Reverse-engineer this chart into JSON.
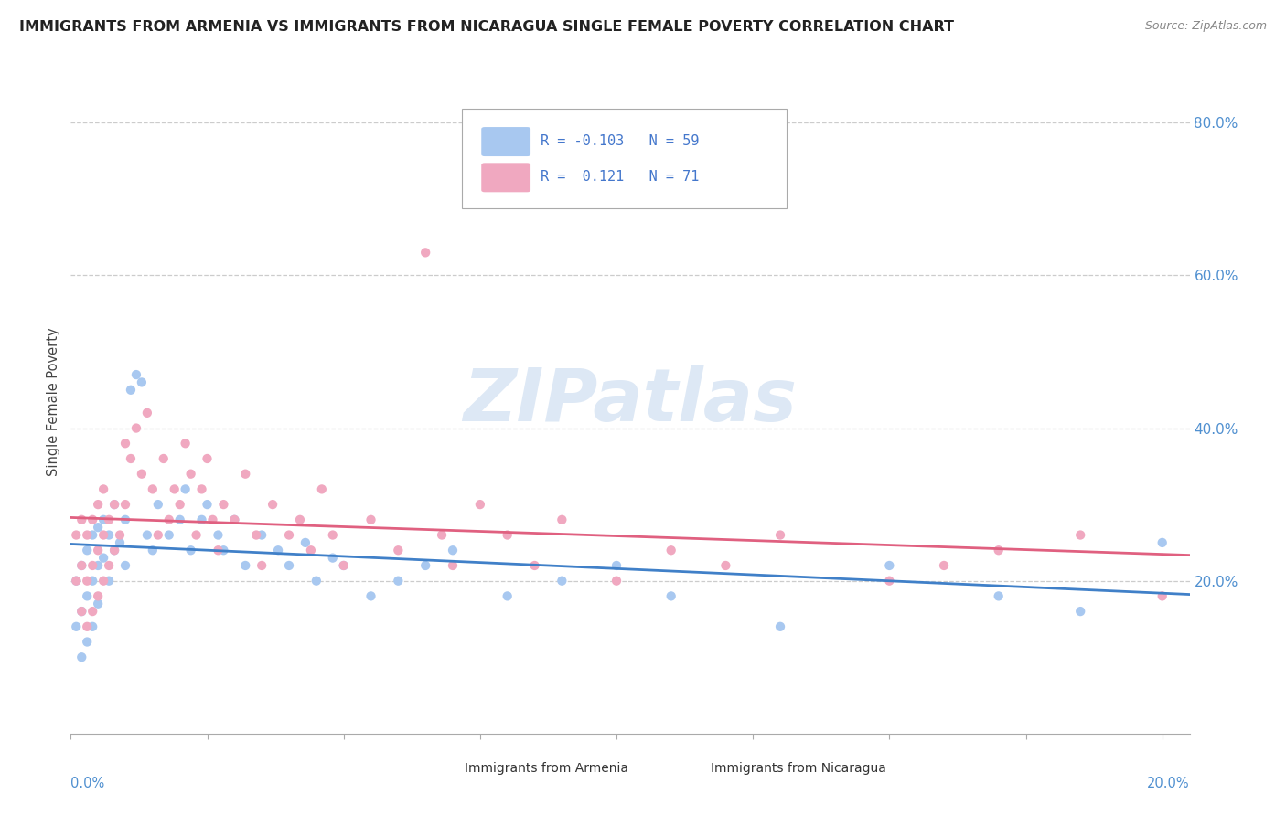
{
  "title": "IMMIGRANTS FROM ARMENIA VS IMMIGRANTS FROM NICARAGUA SINGLE FEMALE POVERTY CORRELATION CHART",
  "source": "Source: ZipAtlas.com",
  "ylabel": "Single Female Poverty",
  "right_yticks": [
    "80.0%",
    "60.0%",
    "40.0%",
    "20.0%"
  ],
  "right_ytick_vals": [
    0.8,
    0.6,
    0.4,
    0.2
  ],
  "xlim": [
    0.0,
    0.205
  ],
  "ylim": [
    0.0,
    0.87
  ],
  "color_armenia": "#a8c8f0",
  "color_nicaragua": "#f0a8c0",
  "line_color_armenia": "#4080c8",
  "line_color_nicaragua": "#e06080",
  "background_color": "#ffffff",
  "arm_R": -0.103,
  "arm_N": 59,
  "nic_R": 0.121,
  "nic_N": 71
}
